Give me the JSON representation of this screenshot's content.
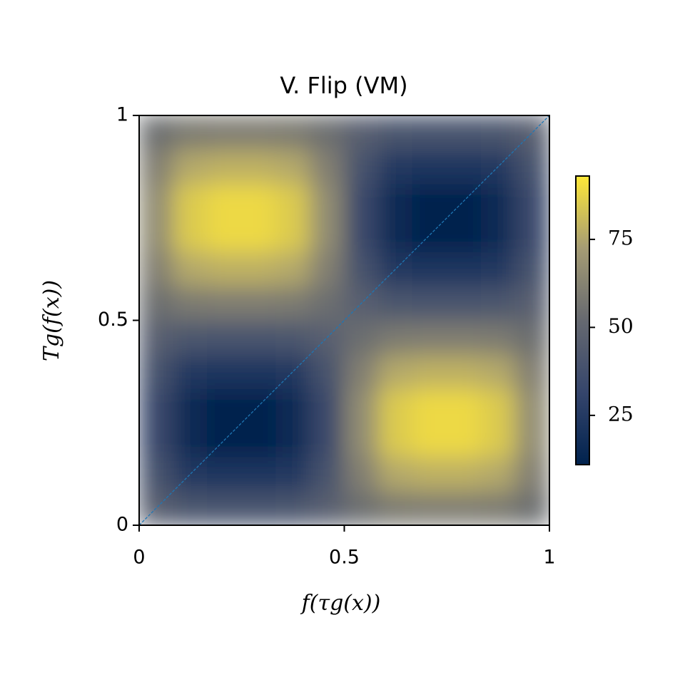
{
  "chart_data": {
    "type": "heatmap",
    "title": "V. Flip (VM)",
    "x_label": "f(τg(x))",
    "y_label": "Tg(f(x))",
    "x": [
      0.0417,
      0.125,
      0.2083,
      0.2917,
      0.375,
      0.4583,
      0.5417,
      0.625,
      0.7083,
      0.7917,
      0.875,
      0.9583
    ],
    "y": [
      0.0417,
      0.125,
      0.2083,
      0.2917,
      0.375,
      0.4583,
      0.5417,
      0.625,
      0.7083,
      0.7917,
      0.875,
      0.9583
    ],
    "z": [
      [
        46,
        41,
        40,
        40,
        41,
        46,
        54,
        59,
        60,
        60,
        59,
        54
      ],
      [
        39,
        24,
        22,
        22,
        24,
        39,
        61,
        76,
        78,
        78,
        76,
        61
      ],
      [
        34,
        15,
        11,
        11,
        15,
        34,
        66,
        85,
        89,
        89,
        85,
        66
      ],
      [
        34,
        15,
        11,
        11,
        15,
        34,
        66,
        85,
        89,
        89,
        85,
        66
      ],
      [
        39,
        24,
        22,
        22,
        24,
        39,
        61,
        76,
        78,
        78,
        76,
        61
      ],
      [
        46,
        41,
        40,
        40,
        41,
        46,
        54,
        59,
        60,
        60,
        59,
        54
      ],
      [
        54,
        59,
        60,
        60,
        59,
        54,
        46,
        41,
        40,
        40,
        41,
        46
      ],
      [
        61,
        76,
        78,
        78,
        76,
        61,
        39,
        24,
        22,
        22,
        24,
        39
      ],
      [
        66,
        85,
        89,
        89,
        85,
        66,
        34,
        15,
        11,
        11,
        15,
        34
      ],
      [
        66,
        85,
        89,
        89,
        85,
        66,
        34,
        15,
        11,
        11,
        15,
        34
      ],
      [
        61,
        76,
        78,
        78,
        76,
        61,
        39,
        24,
        22,
        22,
        24,
        39
      ],
      [
        54,
        59,
        60,
        60,
        59,
        54,
        46,
        41,
        40,
        40,
        41,
        46
      ]
    ],
    "xlim": [
      0,
      1
    ],
    "ylim": [
      0,
      1
    ],
    "xticks": [
      0,
      0.5,
      1
    ],
    "yticks": [
      0,
      0.5,
      1
    ],
    "clim": [
      11,
      93
    ],
    "cbar_ticks": [
      25,
      50,
      75
    ],
    "colormap": [
      "#00224e",
      "#35456c",
      "#666970",
      "#a59c74",
      "#fee838"
    ],
    "diagonal": {
      "x": [
        0,
        1
      ],
      "y": [
        0,
        1
      ],
      "color": "#1f77b4"
    }
  }
}
